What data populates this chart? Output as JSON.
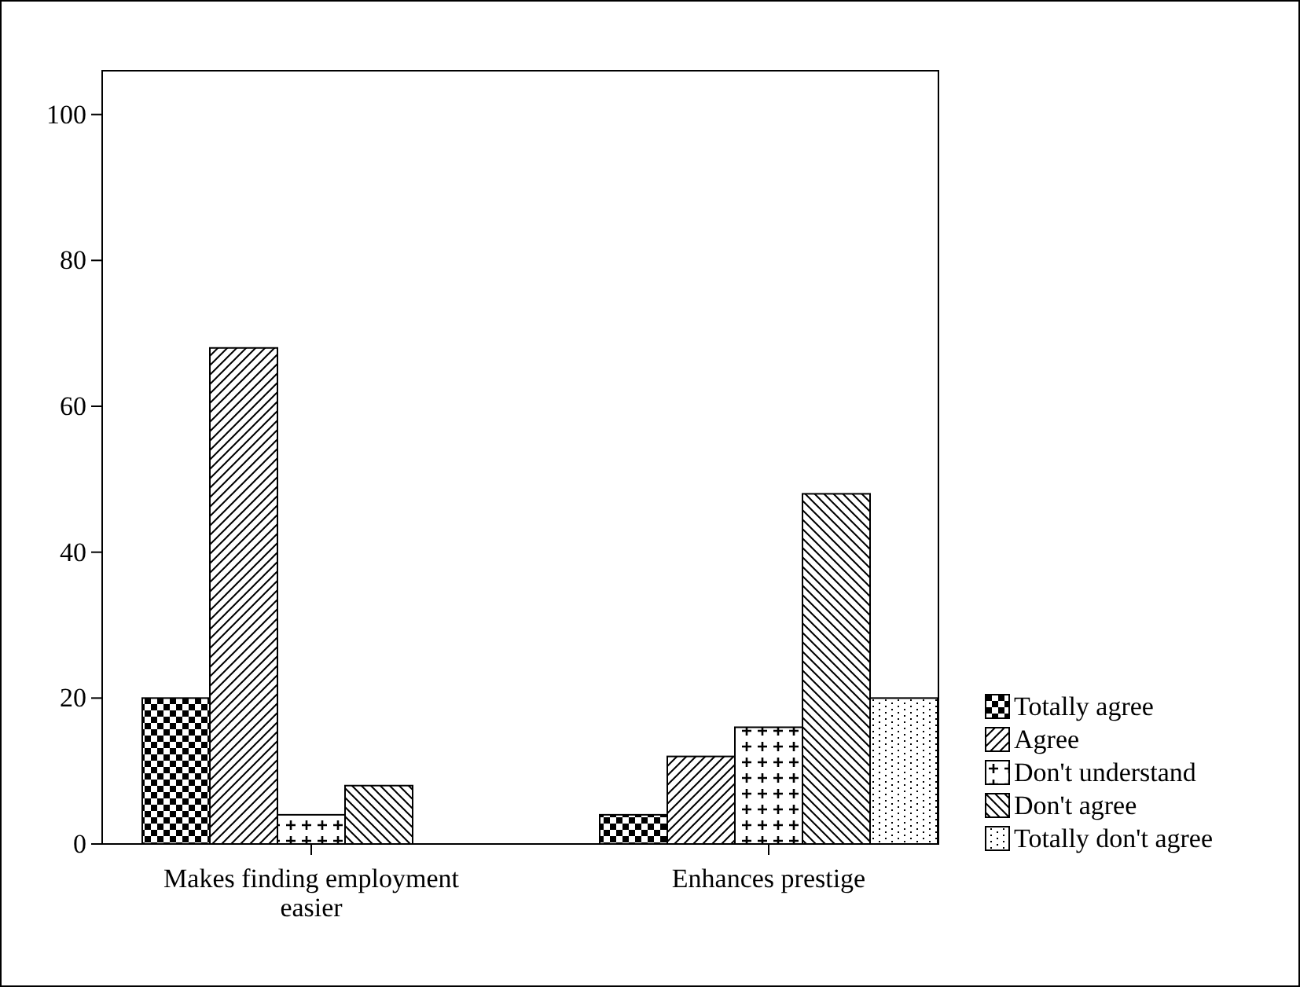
{
  "chart_data": {
    "type": "bar",
    "categories": [
      "Makes finding employment easier",
      "Enhances prestige"
    ],
    "series": [
      {
        "name": "Totally agree",
        "color": "#000000",
        "values": [
          20,
          4
        ]
      },
      {
        "name": "Agree",
        "color": "#000000",
        "values": [
          68,
          12
        ]
      },
      {
        "name": "Don't understand",
        "color": "#000000",
        "values": [
          4,
          16
        ]
      },
      {
        "name": "Don't agree",
        "color": "#000000",
        "values": [
          8,
          48
        ]
      },
      {
        "name": "Totally don't agree",
        "color": "#000000",
        "values": [
          0,
          20
        ]
      }
    ],
    "ylim": [
      0,
      106
    ],
    "yticks": [
      0,
      20,
      40,
      60,
      80,
      100
    ],
    "grid": false,
    "legend": "right"
  }
}
